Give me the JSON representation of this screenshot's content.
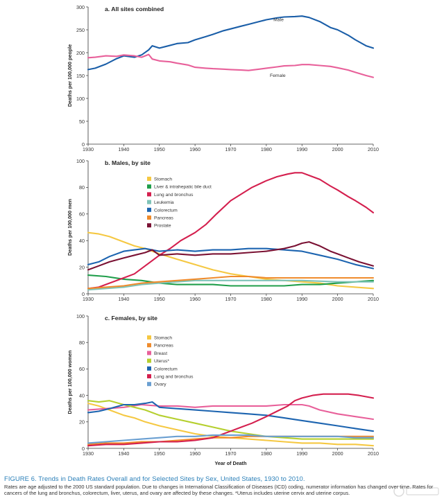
{
  "chart_data": [
    {
      "type": "line",
      "title": "a. All sites combined",
      "xlabel": "",
      "ylabel": "Deaths per 100,000 people",
      "xlim": [
        1930,
        2010
      ],
      "ylim": [
        0,
        300
      ],
      "x_ticks": [
        "1930",
        "1940",
        "1950",
        "1960",
        "1970",
        "1980",
        "1990",
        "2000",
        "2010"
      ],
      "y_ticks": [
        "0",
        "50",
        "100",
        "150",
        "200",
        "250",
        "300"
      ],
      "legend": "inline labels",
      "series": [
        {
          "name": "Male",
          "color": "#1a5ea8",
          "x": [
            1930,
            1932,
            1935,
            1938,
            1940,
            1943,
            1945,
            1947,
            1948,
            1950,
            1952,
            1955,
            1958,
            1960,
            1963,
            1965,
            1968,
            1970,
            1973,
            1975,
            1978,
            1980,
            1983,
            1985,
            1988,
            1990,
            1992,
            1995,
            1998,
            2000,
            2003,
            2005,
            2008,
            2010
          ],
          "y": [
            163,
            166,
            175,
            187,
            193,
            190,
            195,
            206,
            215,
            210,
            214,
            220,
            222,
            228,
            235,
            240,
            248,
            252,
            258,
            262,
            268,
            272,
            276,
            278,
            279,
            280,
            277,
            268,
            255,
            250,
            238,
            228,
            215,
            210
          ]
        },
        {
          "name": "Female",
          "color": "#e8609a",
          "x": [
            1930,
            1932,
            1935,
            1938,
            1940,
            1943,
            1945,
            1947,
            1948,
            1950,
            1953,
            1955,
            1958,
            1960,
            1963,
            1965,
            1968,
            1970,
            1973,
            1975,
            1978,
            1980,
            1983,
            1985,
            1988,
            1990,
            1992,
            1995,
            1998,
            2000,
            2003,
            2005,
            2008,
            2010
          ],
          "y": [
            189,
            190,
            193,
            192,
            195,
            193,
            190,
            196,
            186,
            182,
            180,
            177,
            173,
            168,
            166,
            165,
            164,
            163,
            162,
            161,
            164,
            166,
            169,
            171,
            172,
            174,
            174,
            172,
            170,
            167,
            162,
            157,
            150,
            146
          ]
        }
      ]
    },
    {
      "type": "line",
      "title": "b. Males, by site",
      "xlabel": "",
      "ylabel": "Deaths per 100,000 men",
      "xlim": [
        1930,
        2010
      ],
      "ylim": [
        0,
        100
      ],
      "x_ticks": [
        "1930",
        "1940",
        "1950",
        "1960",
        "1970",
        "1980",
        "1990",
        "2000",
        "2010"
      ],
      "y_ticks": [
        "0",
        "20",
        "40",
        "60",
        "80",
        "100"
      ],
      "legend": "upper-left",
      "series": [
        {
          "name": "Stomach",
          "color": "#f5c842",
          "x": [
            1930,
            1933,
            1936,
            1940,
            1943,
            1946,
            1950,
            1955,
            1960,
            1965,
            1970,
            1975,
            1980,
            1985,
            1990,
            1995,
            2000,
            2005,
            2010
          ],
          "y": [
            46,
            45,
            43,
            39,
            36,
            34,
            30,
            26,
            22,
            18,
            15,
            13,
            11,
            10,
            9,
            8,
            6,
            5,
            4
          ]
        },
        {
          "name": "Liver & intrahepatic bile duct",
          "color": "#1f9e4a",
          "x": [
            1930,
            1935,
            1940,
            1945,
            1950,
            1955,
            1960,
            1965,
            1970,
            1975,
            1980,
            1985,
            1990,
            1995,
            2000,
            2005,
            2010
          ],
          "y": [
            14,
            13,
            11,
            10,
            8,
            7,
            7,
            7,
            6,
            6,
            6,
            6,
            7,
            7,
            8,
            9,
            10
          ]
        },
        {
          "name": "Lung and bronchus",
          "color": "#d41f4e",
          "x": [
            1930,
            1933,
            1936,
            1940,
            1943,
            1946,
            1950,
            1953,
            1956,
            1960,
            1963,
            1966,
            1970,
            1973,
            1976,
            1980,
            1983,
            1986,
            1988,
            1990,
            1992,
            1995,
            1998,
            2000,
            2003,
            2005,
            2008,
            2010
          ],
          "y": [
            4,
            5,
            8,
            12,
            15,
            21,
            29,
            34,
            40,
            46,
            52,
            60,
            70,
            75,
            80,
            85,
            88,
            90,
            91,
            91,
            89,
            86,
            81,
            78,
            73,
            70,
            65,
            61
          ]
        },
        {
          "name": "Leukemia",
          "color": "#7fc3b8",
          "x": [
            1930,
            1935,
            1940,
            1945,
            1950,
            1955,
            1960,
            1965,
            1970,
            1980,
            1990,
            2000,
            2010
          ],
          "y": [
            3,
            4,
            5,
            7,
            8,
            9,
            10,
            10,
            10,
            10,
            10,
            9,
            9
          ]
        },
        {
          "name": "Colorectum",
          "color": "#1c64b0",
          "x": [
            1930,
            1933,
            1936,
            1940,
            1943,
            1946,
            1950,
            1955,
            1960,
            1965,
            1970,
            1975,
            1980,
            1985,
            1990,
            1995,
            2000,
            2005,
            2010
          ],
          "y": [
            22,
            24,
            28,
            32,
            33,
            34,
            32,
            33,
            32,
            33,
            33,
            34,
            34,
            33,
            32,
            29,
            26,
            22,
            19
          ]
        },
        {
          "name": "Pancreas",
          "color": "#ef8b2c",
          "x": [
            1930,
            1935,
            1940,
            1945,
            1950,
            1955,
            1960,
            1965,
            1970,
            1975,
            1980,
            1985,
            1990,
            1995,
            2000,
            2005,
            2010
          ],
          "y": [
            4,
            5,
            6,
            8,
            9,
            10,
            11,
            12,
            13,
            13,
            12,
            12,
            12,
            12,
            12,
            12,
            12
          ]
        },
        {
          "name": "Prostate",
          "color": "#7a1133",
          "x": [
            1930,
            1933,
            1936,
            1940,
            1943,
            1946,
            1948,
            1950,
            1955,
            1960,
            1965,
            1970,
            1975,
            1980,
            1985,
            1988,
            1990,
            1992,
            1995,
            1998,
            2000,
            2003,
            2006,
            2010
          ],
          "y": [
            18,
            21,
            24,
            27,
            29,
            31,
            33,
            29,
            30,
            29,
            30,
            30,
            31,
            32,
            34,
            36,
            38,
            39,
            36,
            32,
            30,
            27,
            24,
            21
          ]
        }
      ]
    },
    {
      "type": "line",
      "title": "c. Females, by site",
      "xlabel": "Year of Death",
      "ylabel": "Deaths per 100,000 women",
      "xlim": [
        1930,
        2010
      ],
      "ylim": [
        0,
        100
      ],
      "x_ticks": [
        "1930",
        "1940",
        "1950",
        "1960",
        "1970",
        "1980",
        "1990",
        "2000",
        "2010"
      ],
      "y_ticks": [
        "0",
        "20",
        "40",
        "60",
        "80",
        "100"
      ],
      "legend": "upper-left",
      "series": [
        {
          "name": "Stomach",
          "color": "#f5c842",
          "x": [
            1930,
            1933,
            1936,
            1940,
            1943,
            1946,
            1950,
            1955,
            1960,
            1965,
            1970,
            1975,
            1980,
            1985,
            1990,
            1995,
            2000,
            2005,
            2010
          ],
          "y": [
            34,
            32,
            29,
            25,
            23,
            20,
            17,
            14,
            11,
            9,
            8,
            7,
            6,
            5,
            4,
            4,
            3,
            3,
            2
          ]
        },
        {
          "name": "Pancreas",
          "color": "#ef8b2c",
          "x": [
            1930,
            1935,
            1940,
            1945,
            1950,
            1955,
            1960,
            1965,
            1970,
            1975,
            1980,
            1990,
            2000,
            2010
          ],
          "y": [
            3,
            4,
            4,
            5,
            5,
            6,
            7,
            8,
            8,
            9,
            9,
            9,
            9,
            9
          ]
        },
        {
          "name": "Breast",
          "color": "#e8609a",
          "x": [
            1930,
            1935,
            1940,
            1945,
            1950,
            1955,
            1960,
            1965,
            1970,
            1975,
            1980,
            1985,
            1990,
            1992,
            1995,
            2000,
            2005,
            2010
          ],
          "y": [
            29,
            30,
            31,
            33,
            32,
            32,
            31,
            32,
            32,
            32,
            32,
            33,
            33,
            32,
            29,
            26,
            24,
            22
          ]
        },
        {
          "name": "Uterus*",
          "color": "#b5cf2e",
          "x": [
            1930,
            1933,
            1936,
            1940,
            1943,
            1946,
            1950,
            1955,
            1960,
            1965,
            1970,
            1975,
            1980,
            1985,
            1990,
            2000,
            2010
          ],
          "y": [
            36,
            35,
            36,
            33,
            31,
            29,
            25,
            22,
            19,
            16,
            13,
            11,
            9,
            8,
            7,
            7,
            7
          ]
        },
        {
          "name": "Colorectum",
          "color": "#1c64b0",
          "x": [
            1930,
            1933,
            1936,
            1940,
            1943,
            1946,
            1948,
            1950,
            1955,
            1960,
            1965,
            1970,
            1975,
            1980,
            1985,
            1990,
            1995,
            2000,
            2005,
            2010
          ],
          "y": [
            27,
            28,
            30,
            33,
            33,
            34,
            35,
            31,
            30,
            29,
            28,
            27,
            26,
            25,
            23,
            21,
            19,
            17,
            15,
            13
          ]
        },
        {
          "name": "Lung and bronchus",
          "color": "#d41f4e",
          "x": [
            1930,
            1935,
            1940,
            1945,
            1950,
            1955,
            1960,
            1965,
            1968,
            1970,
            1973,
            1976,
            1980,
            1983,
            1986,
            1988,
            1990,
            1993,
            1996,
            2000,
            2003,
            2006,
            2010
          ],
          "y": [
            2,
            3,
            3,
            4,
            5,
            5,
            6,
            8,
            11,
            13,
            16,
            19,
            24,
            28,
            32,
            36,
            38,
            40,
            41,
            41,
            41,
            40,
            38
          ]
        },
        {
          "name": "Ovary",
          "color": "#6a9fd1",
          "x": [
            1930,
            1935,
            1940,
            1945,
            1950,
            1955,
            1960,
            1965,
            1970,
            1975,
            1980,
            1985,
            1990,
            1995,
            2000,
            2005,
            2010
          ],
          "y": [
            4,
            5,
            6,
            7,
            8,
            9,
            9,
            10,
            10,
            10,
            9,
            9,
            9,
            9,
            9,
            8,
            8
          ]
        }
      ]
    }
  ],
  "caption": {
    "title": "FIGURE 6. Trends in Death Rates Overall and for Selected Sites by Sex, United States, 1930 to 2010.",
    "body": "Rates are age adjusted to the 2000 US standard population. Due to changes in International Classification of Diseases (ICD) coding, numerator information has changed over time. Rates for cancers of the lung and bronchus, colorectum, liver, uterus, and ovary are affected by these changes. *Uterus includes uterine cervix and uterine corpus."
  }
}
